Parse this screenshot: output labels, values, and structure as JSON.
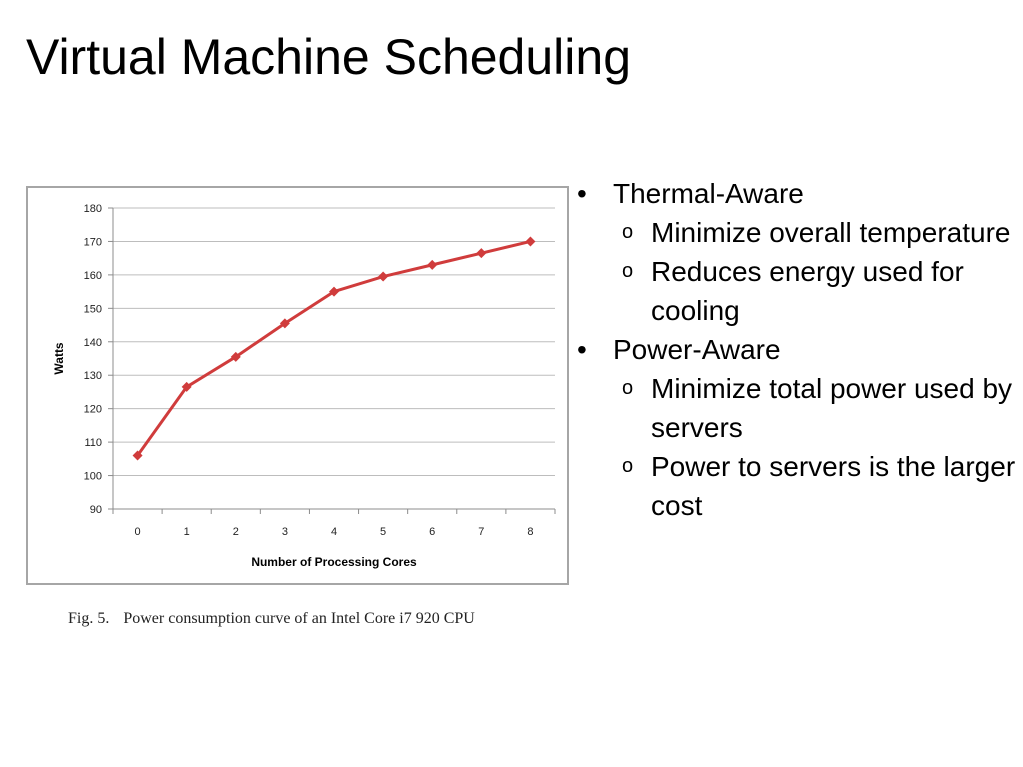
{
  "slide": {
    "title": "Virtual Machine Scheduling"
  },
  "figure": {
    "caption_number": "Fig. 5.",
    "caption_text": "Power consumption curve of an Intel Core i7 920 CPU"
  },
  "chart_data": {
    "type": "line",
    "title": "",
    "xlabel": "Number of Processing Cores",
    "ylabel": "Watts",
    "x": [
      0,
      1,
      2,
      3,
      4,
      5,
      6,
      7,
      8
    ],
    "series": [
      {
        "values": [
          106,
          126.5,
          135.5,
          145.5,
          155,
          159.5,
          163,
          166.5,
          170
        ],
        "color": "#d03c3c"
      }
    ],
    "ylim": [
      90,
      180
    ],
    "yticks": [
      90,
      100,
      110,
      120,
      130,
      140,
      150,
      160,
      170,
      180
    ],
    "grid": true,
    "marker": "diamond"
  },
  "bullets": [
    {
      "marker": "•",
      "text": "Thermal-Aware",
      "subs": [
        {
          "marker": "o",
          "text": "Minimize overall temperature"
        },
        {
          "marker": "o",
          "text": "Reduces energy used for cooling"
        }
      ]
    },
    {
      "marker": "•",
      "text": "Power-Aware",
      "subs": [
        {
          "marker": "o",
          "text": "Minimize total power used by servers"
        },
        {
          "marker": "o",
          "text": "Power to servers is the larger cost"
        }
      ]
    }
  ]
}
